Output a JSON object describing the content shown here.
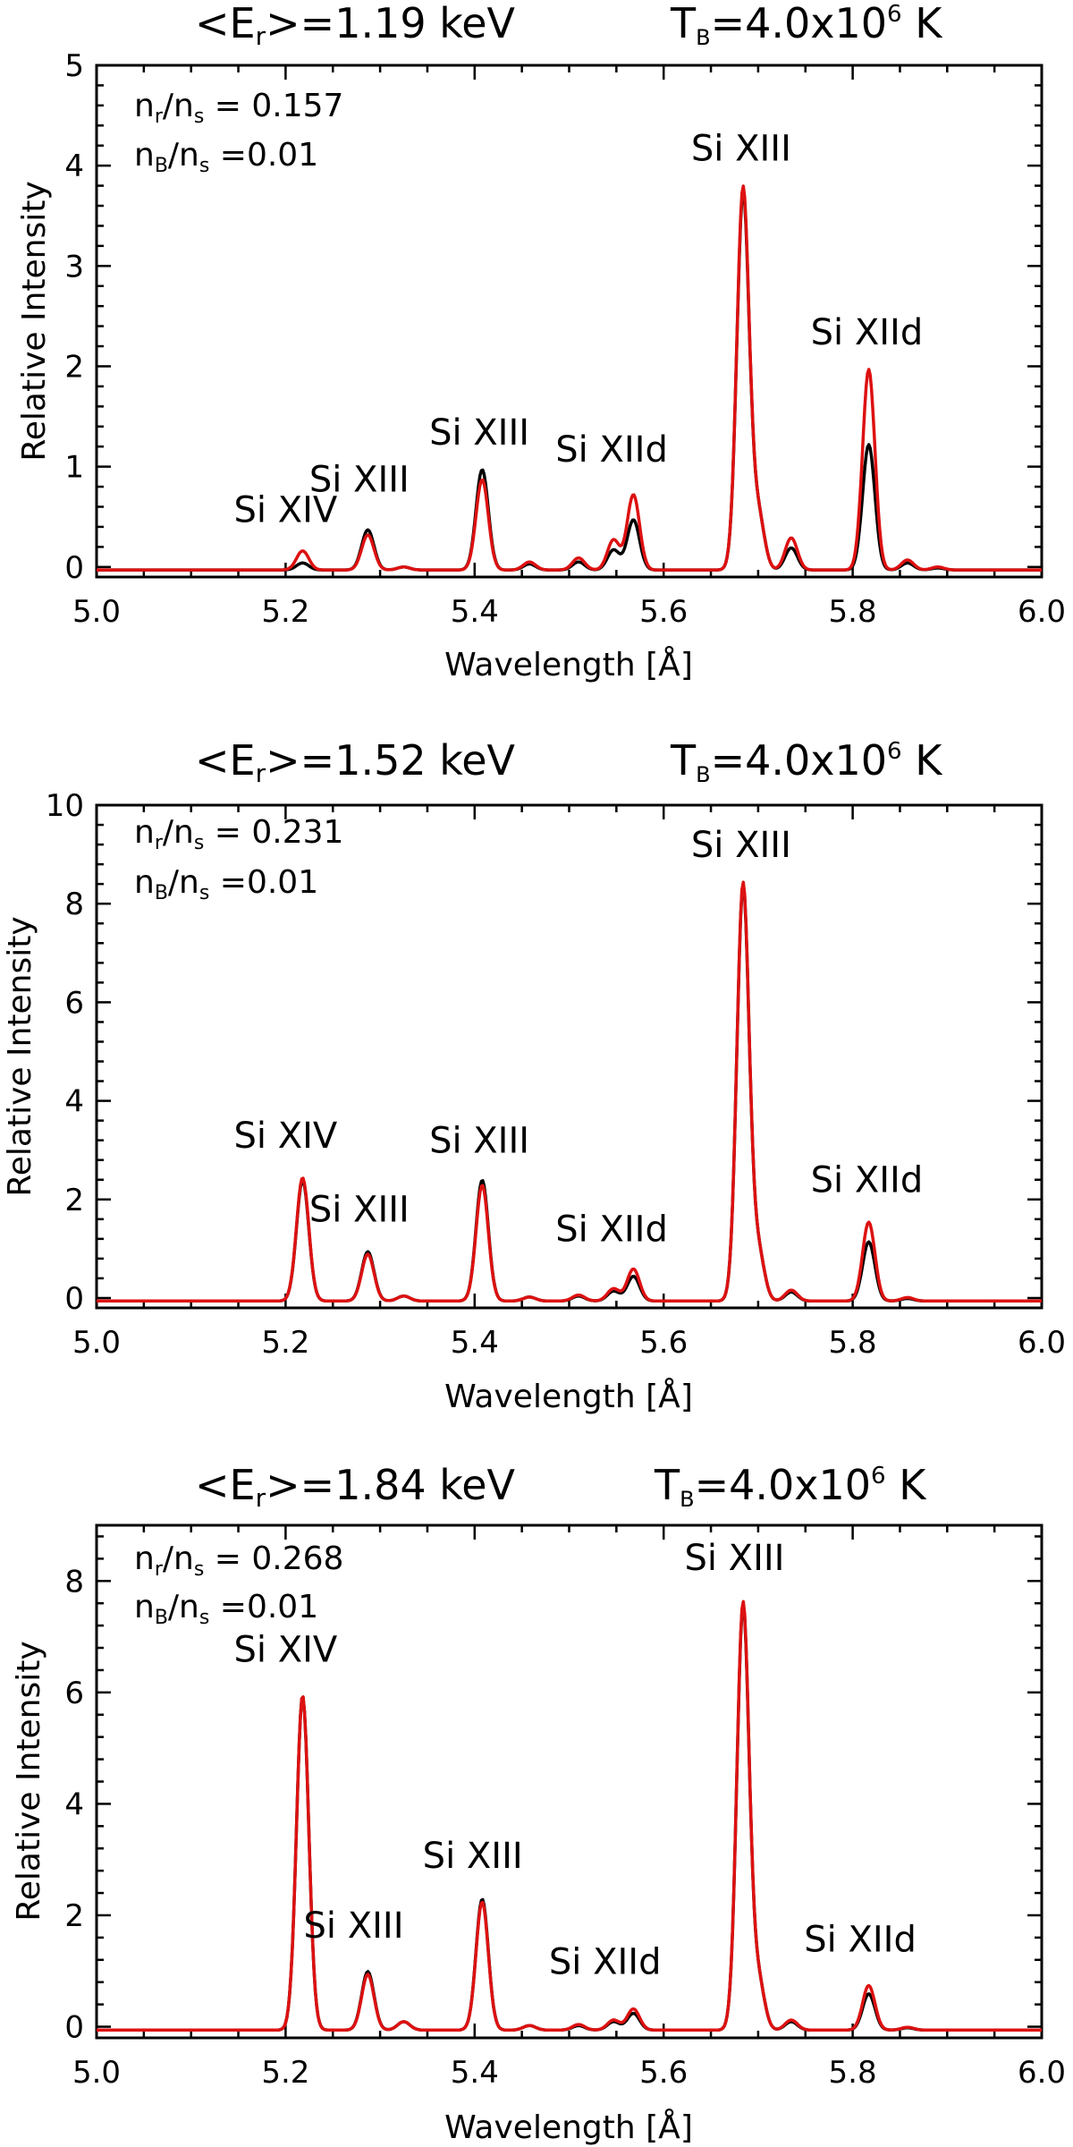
{
  "colors": {
    "black_series": "#000000",
    "red_series": "#dd1111"
  },
  "chart_data": [
    {
      "type": "line",
      "title_left": "<Er>=1.19 keV",
      "title_right": "TB=4.0x10^6 K",
      "title_parts": {
        "energy_prefix": "<E",
        "energy_sub": "r",
        "energy_value": ">=1.19 keV",
        "temp_prefix": "T",
        "temp_sub": "B",
        "temp_value": "=4.0x10",
        "temp_exp": "6",
        "temp_unit": " K"
      },
      "annotations": {
        "nr_ns": {
          "n1": "n",
          "s1": "r",
          "mid": "/n",
          "s2": "s",
          "value": " = 0.157"
        },
        "nB_ns": {
          "n1": "n",
          "s1": "B",
          "mid": "/n",
          "s2": "s",
          "value": " =0.01"
        }
      },
      "xlabel": "Wavelength [Å]",
      "ylabel": "Relative Intensity",
      "xlim": [
        5.0,
        6.0
      ],
      "ylim": [
        -0.1,
        5.0
      ],
      "xticks": [
        5.0,
        5.2,
        5.4,
        5.6,
        5.8,
        6.0
      ],
      "xtick_labels": [
        "5.0",
        "5.2",
        "5.4",
        "5.6",
        "5.8",
        "6.0"
      ],
      "yticks": [
        0,
        1,
        2,
        3,
        4,
        5
      ],
      "ytick_labels": [
        "0",
        "1",
        "2",
        "3",
        "4",
        "5"
      ],
      "line_labels": [
        {
          "text": "Si XIV",
          "x": 5.2,
          "y": 0.45
        },
        {
          "text": "Si XIII",
          "x": 5.278,
          "y": 0.75
        },
        {
          "text": "Si XIII",
          "x": 5.405,
          "y": 1.22
        },
        {
          "text": "Si XIId",
          "x": 5.545,
          "y": 1.05
        },
        {
          "text": "Si XIII",
          "x": 5.682,
          "y": 4.05
        },
        {
          "text": "Si XIId",
          "x": 5.815,
          "y": 2.22
        }
      ],
      "sigma": 0.0065,
      "baseline": -0.03,
      "series": [
        {
          "name": "black",
          "peaks": [
            [
              5.218,
              0.07
            ],
            [
              5.287,
              0.4
            ],
            [
              5.325,
              0.03
            ],
            [
              5.408,
              1.0
            ],
            [
              5.458,
              0.06
            ],
            [
              5.51,
              0.08
            ],
            [
              5.547,
              0.2
            ],
            [
              5.568,
              0.5
            ],
            [
              5.684,
              3.75
            ],
            [
              5.7,
              0.55
            ],
            [
              5.735,
              0.22
            ],
            [
              5.817,
              1.25
            ],
            [
              5.858,
              0.07
            ],
            [
              5.89,
              0.02
            ]
          ]
        },
        {
          "name": "red",
          "peaks": [
            [
              5.218,
              0.19
            ],
            [
              5.287,
              0.35
            ],
            [
              5.325,
              0.03
            ],
            [
              5.408,
              0.9
            ],
            [
              5.458,
              0.08
            ],
            [
              5.51,
              0.12
            ],
            [
              5.547,
              0.3
            ],
            [
              5.568,
              0.75
            ],
            [
              5.684,
              3.8
            ],
            [
              5.7,
              0.55
            ],
            [
              5.735,
              0.32
            ],
            [
              5.817,
              2.0
            ],
            [
              5.858,
              0.1
            ],
            [
              5.89,
              0.03
            ]
          ]
        }
      ]
    },
    {
      "type": "line",
      "title_left": "<Er>=1.52 keV",
      "title_right": "TB=4.0x10^6 K",
      "title_parts": {
        "energy_prefix": "<E",
        "energy_sub": "r",
        "energy_value": ">=1.52 keV",
        "temp_prefix": "T",
        "temp_sub": "B",
        "temp_value": "=4.0x10",
        "temp_exp": "6",
        "temp_unit": " K"
      },
      "annotations": {
        "nr_ns": {
          "n1": "n",
          "s1": "r",
          "mid": "/n",
          "s2": "s",
          "value": " = 0.231"
        },
        "nB_ns": {
          "n1": "n",
          "s1": "B",
          "mid": "/n",
          "s2": "s",
          "value": " =0.01"
        }
      },
      "xlabel": "Wavelength [Å]",
      "ylabel": "Relative Intensity",
      "xlim": [
        5.0,
        6.0
      ],
      "ylim": [
        -0.2,
        10.0
      ],
      "xticks": [
        5.0,
        5.2,
        5.4,
        5.6,
        5.8,
        6.0
      ],
      "xtick_labels": [
        "5.0",
        "5.2",
        "5.4",
        "5.6",
        "5.8",
        "6.0"
      ],
      "yticks": [
        0,
        2,
        4,
        6,
        8,
        10
      ],
      "ytick_labels": [
        "0",
        "2",
        "4",
        "6",
        "8",
        "10"
      ],
      "line_labels": [
        {
          "text": "Si XIV",
          "x": 5.2,
          "y": 3.05
        },
        {
          "text": "Si XIII",
          "x": 5.278,
          "y": 1.55
        },
        {
          "text": "Si XIII",
          "x": 5.405,
          "y": 2.95
        },
        {
          "text": "Si XIId",
          "x": 5.545,
          "y": 1.15
        },
        {
          "text": "Si XIII",
          "x": 5.682,
          "y": 8.95
        },
        {
          "text": "Si XIId",
          "x": 5.815,
          "y": 2.15
        }
      ],
      "sigma": 0.0065,
      "baseline": -0.06,
      "series": [
        {
          "name": "black",
          "peaks": [
            [
              5.218,
              2.45
            ],
            [
              5.287,
              1.0
            ],
            [
              5.325,
              0.1
            ],
            [
              5.408,
              2.45
            ],
            [
              5.458,
              0.08
            ],
            [
              5.51,
              0.1
            ],
            [
              5.547,
              0.2
            ],
            [
              5.568,
              0.5
            ],
            [
              5.684,
              8.4
            ],
            [
              5.7,
              1.0
            ],
            [
              5.735,
              0.18
            ],
            [
              5.817,
              1.2
            ],
            [
              5.858,
              0.05
            ]
          ]
        },
        {
          "name": "red",
          "peaks": [
            [
              5.218,
              2.5
            ],
            [
              5.287,
              0.95
            ],
            [
              5.325,
              0.1
            ],
            [
              5.408,
              2.35
            ],
            [
              5.458,
              0.08
            ],
            [
              5.51,
              0.12
            ],
            [
              5.547,
              0.25
            ],
            [
              5.568,
              0.65
            ],
            [
              5.684,
              8.45
            ],
            [
              5.7,
              1.0
            ],
            [
              5.735,
              0.22
            ],
            [
              5.817,
              1.6
            ],
            [
              5.858,
              0.07
            ]
          ]
        }
      ]
    },
    {
      "type": "line",
      "title_left": "<Er>=1.84 keV",
      "title_right": "TB=4.0x10^6 K",
      "title_parts": {
        "energy_prefix": "<E",
        "energy_sub": "r",
        "energy_value": ">=1.84 keV",
        "temp_prefix": "T",
        "temp_sub": "B",
        "temp_value": "=4.0x10",
        "temp_exp": "6",
        "temp_unit": " K"
      },
      "annotations": {
        "nr_ns": {
          "n1": "n",
          "s1": "r",
          "mid": "/n",
          "s2": "s",
          "value": " = 0.268"
        },
        "nB_ns": {
          "n1": "n",
          "s1": "B",
          "mid": "/n",
          "s2": "s",
          "value": " =0.01"
        }
      },
      "xlabel": "Wavelength [Å]",
      "ylabel": "Relative Intensity",
      "xlim": [
        5.0,
        6.0
      ],
      "ylim": [
        -0.2,
        9.0
      ],
      "xticks": [
        5.0,
        5.2,
        5.4,
        5.6,
        5.8,
        6.0
      ],
      "xtick_labels": [
        "5.0",
        "5.2",
        "5.4",
        "5.6",
        "5.8",
        "6.0"
      ],
      "yticks": [
        0,
        2,
        4,
        6,
        8
      ],
      "ytick_labels": [
        "0",
        "2",
        "4",
        "6",
        "8"
      ],
      "line_labels": [
        {
          "text": "Si XIV",
          "x": 5.2,
          "y": 6.55
        },
        {
          "text": "Si XIII",
          "x": 5.272,
          "y": 1.6
        },
        {
          "text": "Si XIII",
          "x": 5.398,
          "y": 2.85
        },
        {
          "text": "Si XIId",
          "x": 5.538,
          "y": 0.95
        },
        {
          "text": "Si XIII",
          "x": 5.675,
          "y": 8.2
        },
        {
          "text": "Si XIId",
          "x": 5.808,
          "y": 1.35
        }
      ],
      "sigma": 0.0065,
      "baseline": -0.06,
      "series": [
        {
          "name": "black",
          "peaks": [
            [
              5.218,
              6.0
            ],
            [
              5.287,
              1.05
            ],
            [
              5.325,
              0.15
            ],
            [
              5.408,
              2.35
            ],
            [
              5.458,
              0.08
            ],
            [
              5.51,
              0.08
            ],
            [
              5.547,
              0.15
            ],
            [
              5.568,
              0.3
            ],
            [
              5.684,
              7.6
            ],
            [
              5.7,
              0.9
            ],
            [
              5.735,
              0.15
            ],
            [
              5.817,
              0.65
            ],
            [
              5.858,
              0.04
            ]
          ]
        },
        {
          "name": "red",
          "peaks": [
            [
              5.218,
              6.0
            ],
            [
              5.287,
              1.0
            ],
            [
              5.325,
              0.15
            ],
            [
              5.408,
              2.3
            ],
            [
              5.458,
              0.08
            ],
            [
              5.51,
              0.1
            ],
            [
              5.547,
              0.18
            ],
            [
              5.568,
              0.38
            ],
            [
              5.684,
              7.65
            ],
            [
              5.7,
              0.9
            ],
            [
              5.735,
              0.18
            ],
            [
              5.817,
              0.8
            ],
            [
              5.858,
              0.05
            ]
          ]
        }
      ]
    }
  ]
}
